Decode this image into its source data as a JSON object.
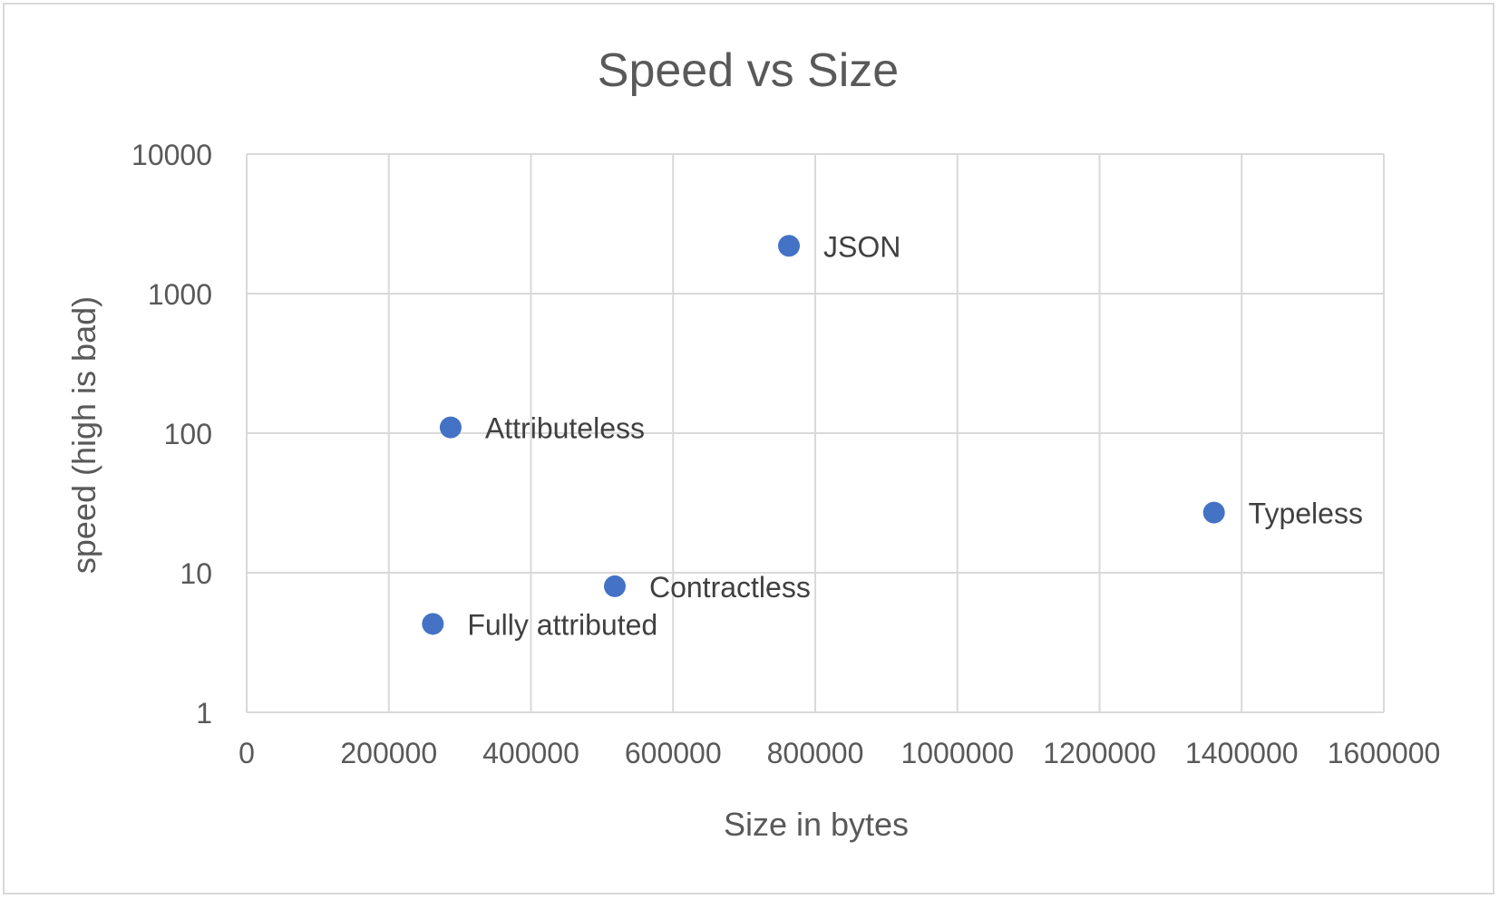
{
  "chart_data": {
    "type": "scatter",
    "title": "Speed vs Size",
    "xlabel": "Size in bytes",
    "ylabel": "speed (high is bad)",
    "xlim": [
      0,
      1600000
    ],
    "ylim": [
      1,
      10000
    ],
    "y_scale": "log",
    "grid": true,
    "x_ticks": [
      "0",
      "200000",
      "400000",
      "600000",
      "800000",
      "1000000",
      "1200000",
      "1400000",
      "1600000"
    ],
    "y_ticks": [
      "1",
      "10",
      "100",
      "1000",
      "10000"
    ],
    "marker_color": "#4472c4",
    "points": [
      {
        "label": "JSON",
        "x": 763000,
        "y": 2200
      },
      {
        "label": "Attributeless",
        "x": 287000,
        "y": 110
      },
      {
        "label": "Typeless",
        "x": 1361000,
        "y": 27
      },
      {
        "label": "Contractless",
        "x": 518000,
        "y": 8
      },
      {
        "label": "Fully attributed",
        "x": 262000,
        "y": 4.3
      }
    ]
  },
  "colors": {
    "grid": "#d9d9d9",
    "text": "#595959",
    "label_text": "#404040",
    "frame": "#d9d9d9"
  }
}
